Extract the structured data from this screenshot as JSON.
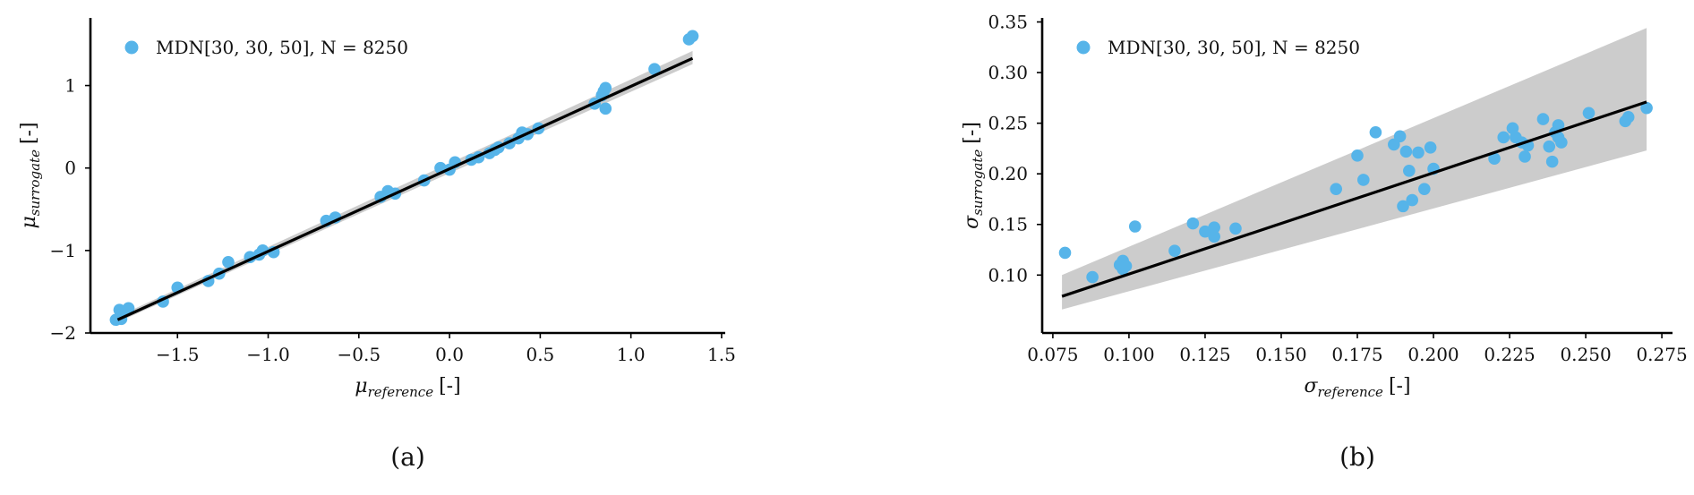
{
  "colors": {
    "points": "#56B4E9",
    "fit_line": "#000000",
    "band": "#c9c9c9",
    "axis": "#000000"
  },
  "chart_data": [
    {
      "type": "scatter",
      "panel_label": "(a)",
      "legend": {
        "label": "MDN[30, 30, 50], N = 8250",
        "placement": "top-left",
        "marker_icon": "circle-marker-icon"
      },
      "xlabel": {
        "symbol": "μ",
        "subscript": "reference",
        "unit": "[-]"
      },
      "ylabel": {
        "symbol": "μ",
        "subscript": "surrogate",
        "unit": "[-]"
      },
      "xlim": [
        -1.98,
        1.52
      ],
      "ylim": [
        -2.0,
        1.82
      ],
      "xticks": [
        -1.5,
        -1.0,
        -0.5,
        0.0,
        0.5,
        1.0,
        1.5
      ],
      "xtick_labels": [
        "−1.5",
        "−1.0",
        "−0.5",
        "0.0",
        "0.5",
        "1.0",
        "1.5"
      ],
      "yticks": [
        -2,
        -1,
        0,
        1
      ],
      "ytick_labels": [
        "−2",
        "−1",
        "0",
        "1"
      ],
      "grid": false,
      "fit_line": {
        "x": [
          -1.83,
          1.34
        ],
        "y": [
          -1.84,
          1.33
        ]
      },
      "band": {
        "x": [
          -1.83,
          1.34
        ],
        "upper": [
          -1.8,
          1.42
        ],
        "lower": [
          -1.87,
          1.26
        ]
      },
      "points": [
        [
          -1.84,
          -1.84
        ],
        [
          -1.82,
          -1.82
        ],
        [
          -1.81,
          -1.83
        ],
        [
          -1.82,
          -1.72
        ],
        [
          -1.8,
          -1.74
        ],
        [
          -1.77,
          -1.7
        ],
        [
          -1.58,
          -1.62
        ],
        [
          -1.5,
          -1.45
        ],
        [
          -1.33,
          -1.37
        ],
        [
          -1.27,
          -1.28
        ],
        [
          -1.22,
          -1.14
        ],
        [
          -1.1,
          -1.08
        ],
        [
          -1.05,
          -1.05
        ],
        [
          -1.03,
          -1.0
        ],
        [
          -0.97,
          -1.02
        ],
        [
          -0.68,
          -0.64
        ],
        [
          -0.63,
          -0.6
        ],
        [
          -0.38,
          -0.35
        ],
        [
          -0.34,
          -0.28
        ],
        [
          -0.3,
          -0.31
        ],
        [
          -0.14,
          -0.15
        ],
        [
          -0.05,
          0.0
        ],
        [
          0.0,
          -0.02
        ],
        [
          0.03,
          0.07
        ],
        [
          0.12,
          0.1
        ],
        [
          0.16,
          0.13
        ],
        [
          0.22,
          0.18
        ],
        [
          0.25,
          0.22
        ],
        [
          0.27,
          0.25
        ],
        [
          0.33,
          0.3
        ],
        [
          0.38,
          0.36
        ],
        [
          0.4,
          0.43
        ],
        [
          0.43,
          0.41
        ],
        [
          0.49,
          0.48
        ],
        [
          0.8,
          0.78
        ],
        [
          0.84,
          0.88
        ],
        [
          0.85,
          0.93
        ],
        [
          0.86,
          0.97
        ],
        [
          0.86,
          0.72
        ],
        [
          1.13,
          1.2
        ],
        [
          1.32,
          1.56
        ],
        [
          1.34,
          1.6
        ]
      ]
    },
    {
      "type": "scatter",
      "panel_label": "(b)",
      "legend": {
        "label": "MDN[30, 30, 50], N = 8250",
        "placement": "top-left",
        "marker_icon": "circle-marker-icon"
      },
      "xlabel": {
        "symbol": "σ",
        "subscript": "reference",
        "unit": "[-]"
      },
      "ylabel": {
        "symbol": "σ",
        "subscript": "surrogate",
        "unit": "[-]"
      },
      "xlim": [
        0.0715,
        0.2785
      ],
      "ylim": [
        0.0428,
        0.354
      ],
      "xticks": [
        0.075,
        0.1,
        0.125,
        0.15,
        0.175,
        0.2,
        0.225,
        0.25,
        0.275
      ],
      "xtick_labels": [
        "0.075",
        "0.100",
        "0.125",
        "0.150",
        "0.175",
        "0.200",
        "0.225",
        "0.250",
        "0.275"
      ],
      "yticks": [
        0.1,
        0.15,
        0.2,
        0.25,
        0.3,
        0.35
      ],
      "ytick_labels": [
        "0.10",
        "0.15",
        "0.20",
        "0.25",
        "0.30",
        "0.35"
      ],
      "grid": false,
      "fit_line": {
        "x": [
          0.078,
          0.27
        ],
        "y": [
          0.079,
          0.271
        ]
      },
      "band": {
        "x": [
          0.078,
          0.27
        ],
        "upper": [
          0.1,
          0.344
        ],
        "lower": [
          0.066,
          0.223
        ]
      },
      "points": [
        [
          0.079,
          0.122
        ],
        [
          0.088,
          0.098
        ],
        [
          0.097,
          0.11
        ],
        [
          0.098,
          0.114
        ],
        [
          0.098,
          0.106
        ],
        [
          0.099,
          0.109
        ],
        [
          0.102,
          0.148
        ],
        [
          0.115,
          0.124
        ],
        [
          0.121,
          0.151
        ],
        [
          0.125,
          0.143
        ],
        [
          0.128,
          0.138
        ],
        [
          0.128,
          0.147
        ],
        [
          0.135,
          0.146
        ],
        [
          0.168,
          0.185
        ],
        [
          0.175,
          0.218
        ],
        [
          0.177,
          0.194
        ],
        [
          0.181,
          0.241
        ],
        [
          0.187,
          0.229
        ],
        [
          0.189,
          0.237
        ],
        [
          0.19,
          0.168
        ],
        [
          0.191,
          0.222
        ],
        [
          0.192,
          0.203
        ],
        [
          0.193,
          0.174
        ],
        [
          0.195,
          0.221
        ],
        [
          0.197,
          0.185
        ],
        [
          0.199,
          0.226
        ],
        [
          0.2,
          0.205
        ],
        [
          0.22,
          0.215
        ],
        [
          0.223,
          0.236
        ],
        [
          0.226,
          0.245
        ],
        [
          0.227,
          0.236
        ],
        [
          0.229,
          0.231
        ],
        [
          0.23,
          0.217
        ],
        [
          0.231,
          0.228
        ],
        [
          0.236,
          0.254
        ],
        [
          0.238,
          0.227
        ],
        [
          0.239,
          0.212
        ],
        [
          0.24,
          0.241
        ],
        [
          0.241,
          0.236
        ],
        [
          0.241,
          0.248
        ],
        [
          0.242,
          0.231
        ],
        [
          0.251,
          0.26
        ],
        [
          0.263,
          0.252
        ],
        [
          0.264,
          0.256
        ],
        [
          0.27,
          0.265
        ]
      ]
    }
  ]
}
